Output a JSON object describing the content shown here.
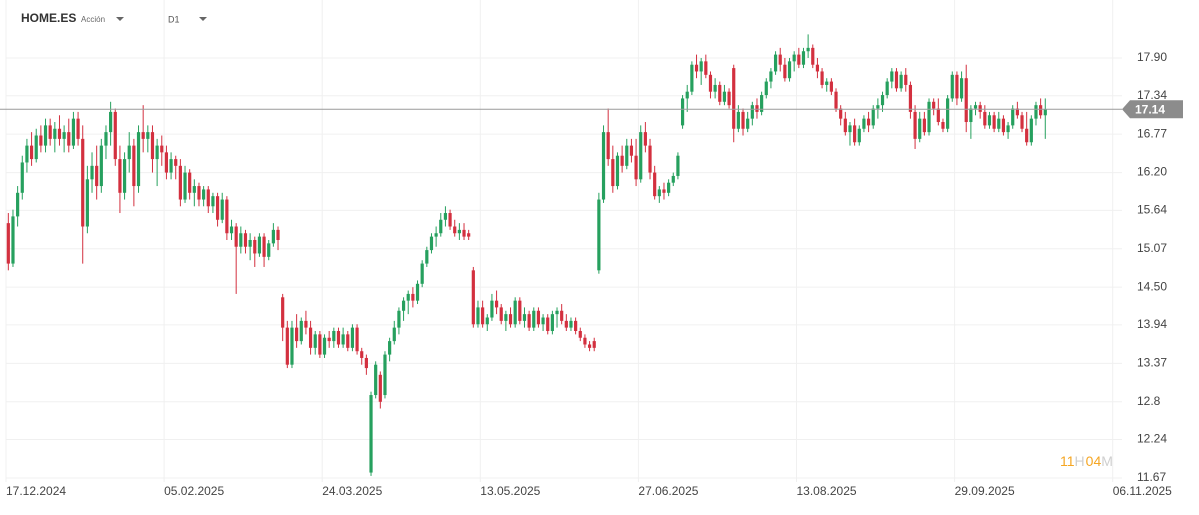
{
  "header": {
    "symbol": "HOME.ES",
    "kind": "Acción",
    "timeframe": "D1"
  },
  "countdown": {
    "hours": "11",
    "h": "H",
    "minutes": "04",
    "m": "M"
  },
  "chart_data": {
    "type": "candlestick",
    "up_color": "#26a05e",
    "down_color": "#d3303f",
    "grid": true,
    "last_price": 17.14,
    "ylim": [
      11.61,
      18.76
    ],
    "yticks": [
      11.67,
      12.24,
      12.8,
      {
        "value": 13.37,
        "label": "13.37"
      },
      13.94,
      {
        "value": 14.5,
        "label": "14.50"
      },
      15.07,
      15.64,
      {
        "value": 16.2,
        "label": "16.20"
      },
      16.77,
      17.34,
      {
        "value": 17.9,
        "label": "17.90"
      }
    ],
    "xlim": [
      0,
      240
    ],
    "xticks": [
      {
        "value": 0,
        "label": "17.12.2024"
      },
      {
        "value": 34,
        "label": "05.02.2025"
      },
      {
        "value": 68,
        "label": "24.03.2025"
      },
      {
        "value": 102,
        "label": "13.05.2025"
      },
      {
        "value": 136,
        "label": "27.06.2025"
      },
      {
        "value": 170,
        "label": "13.08.2025"
      },
      {
        "value": 204,
        "label": "29.09.2025"
      },
      {
        "value": 238,
        "label": "06.11.2025"
      }
    ],
    "candles": [
      [
        15.45,
        15.6,
        14.75,
        14.85
      ],
      [
        14.85,
        15.65,
        14.8,
        15.55
      ],
      [
        15.55,
        16.0,
        15.4,
        15.9
      ],
      [
        15.9,
        16.45,
        15.8,
        16.35
      ],
      [
        16.35,
        16.7,
        16.2,
        16.6
      ],
      [
        16.6,
        16.8,
        16.3,
        16.4
      ],
      [
        16.4,
        16.85,
        16.35,
        16.75
      ],
      [
        16.75,
        16.9,
        16.5,
        16.6
      ],
      [
        16.6,
        17.0,
        16.5,
        16.9
      ],
      [
        16.9,
        17.0,
        16.6,
        16.7
      ],
      [
        16.7,
        16.95,
        16.5,
        16.85
      ],
      [
        16.85,
        17.05,
        16.6,
        16.7
      ],
      [
        16.7,
        16.9,
        16.5,
        16.8
      ],
      [
        16.8,
        17.0,
        16.5,
        16.6
      ],
      [
        16.6,
        17.1,
        16.55,
        17.0
      ],
      [
        17.0,
        17.1,
        16.6,
        16.7
      ],
      [
        16.7,
        16.9,
        14.85,
        15.4
      ],
      [
        15.4,
        16.3,
        15.3,
        16.1
      ],
      [
        16.1,
        16.5,
        15.9,
        16.3
      ],
      [
        16.3,
        16.6,
        15.8,
        16.0
      ],
      [
        16.0,
        16.7,
        15.9,
        16.6
      ],
      [
        16.6,
        16.9,
        16.4,
        16.8
      ],
      [
        16.8,
        17.25,
        16.6,
        17.1
      ],
      [
        17.1,
        17.15,
        16.3,
        16.4
      ],
      [
        16.4,
        16.6,
        15.6,
        15.9
      ],
      [
        15.9,
        16.5,
        15.8,
        16.4
      ],
      [
        16.4,
        16.8,
        16.2,
        16.6
      ],
      [
        16.6,
        16.7,
        15.7,
        16.0
      ],
      [
        16.0,
        16.9,
        15.9,
        16.8
      ],
      [
        16.8,
        17.2,
        16.5,
        16.7
      ],
      [
        16.7,
        16.9,
        16.5,
        16.8
      ],
      [
        16.8,
        16.9,
        16.2,
        16.4
      ],
      [
        16.4,
        16.7,
        16.0,
        16.6
      ],
      [
        16.6,
        16.75,
        16.3,
        16.5
      ],
      [
        16.5,
        16.6,
        16.1,
        16.2
      ],
      [
        16.2,
        16.5,
        16.1,
        16.4
      ],
      [
        16.4,
        16.45,
        16.1,
        16.3
      ],
      [
        16.3,
        16.4,
        15.7,
        15.8
      ],
      [
        15.8,
        16.3,
        15.75,
        16.2
      ],
      [
        16.2,
        16.25,
        15.8,
        15.9
      ],
      [
        15.9,
        16.1,
        15.7,
        16.0
      ],
      [
        16.0,
        16.05,
        15.7,
        15.8
      ],
      [
        15.8,
        16.0,
        15.7,
        15.95
      ],
      [
        15.95,
        16.0,
        15.6,
        15.7
      ],
      [
        15.7,
        15.9,
        15.6,
        15.85
      ],
      [
        15.85,
        15.9,
        15.4,
        15.5
      ],
      [
        15.5,
        15.9,
        15.45,
        15.8
      ],
      [
        15.8,
        15.85,
        15.2,
        15.3
      ],
      [
        15.3,
        15.5,
        15.2,
        15.4
      ],
      [
        15.4,
        15.45,
        14.4,
        15.1
      ],
      [
        15.1,
        15.4,
        15.0,
        15.3
      ],
      [
        15.3,
        15.35,
        15.0,
        15.1
      ],
      [
        15.1,
        15.3,
        14.9,
        15.2
      ],
      [
        15.2,
        15.25,
        14.8,
        15.0
      ],
      [
        15.0,
        15.3,
        14.95,
        15.25
      ],
      [
        15.25,
        15.3,
        14.8,
        14.95
      ],
      [
        14.95,
        15.2,
        14.9,
        15.15
      ],
      [
        15.15,
        15.45,
        15.1,
        15.35
      ],
      [
        15.35,
        15.4,
        15.05,
        15.2
      ],
      [
        14.35,
        14.4,
        13.7,
        13.9
      ],
      [
        13.9,
        14.0,
        13.3,
        13.35
      ],
      [
        13.35,
        14.0,
        13.3,
        13.9
      ],
      [
        13.9,
        14.1,
        13.6,
        13.7
      ],
      [
        13.7,
        14.05,
        13.65,
        14.0
      ],
      [
        14.0,
        14.15,
        13.8,
        13.9
      ],
      [
        13.9,
        14.0,
        13.5,
        13.6
      ],
      [
        13.6,
        13.85,
        13.5,
        13.8
      ],
      [
        13.8,
        13.85,
        13.45,
        13.5
      ],
      [
        13.5,
        13.8,
        13.45,
        13.75
      ],
      [
        13.75,
        13.85,
        13.6,
        13.7
      ],
      [
        13.7,
        13.9,
        13.6,
        13.85
      ],
      [
        13.85,
        13.9,
        13.6,
        13.65
      ],
      [
        13.65,
        13.9,
        13.6,
        13.8
      ],
      [
        13.8,
        13.85,
        13.55,
        13.6
      ],
      [
        13.6,
        13.95,
        13.55,
        13.9
      ],
      [
        13.9,
        13.95,
        13.5,
        13.55
      ],
      [
        13.55,
        13.6,
        13.35,
        13.45
      ],
      [
        13.45,
        13.5,
        13.2,
        13.3
      ],
      [
        11.75,
        12.95,
        11.7,
        12.9
      ],
      [
        12.9,
        13.4,
        12.85,
        13.35
      ],
      [
        13.2,
        13.25,
        12.7,
        12.8
      ],
      [
        12.9,
        13.55,
        12.85,
        13.5
      ],
      [
        13.5,
        13.75,
        13.4,
        13.7
      ],
      [
        13.7,
        14.0,
        13.65,
        13.9
      ],
      [
        13.9,
        14.2,
        13.8,
        14.15
      ],
      [
        14.15,
        14.35,
        14.0,
        14.3
      ],
      [
        14.3,
        14.45,
        14.1,
        14.4
      ],
      [
        14.4,
        14.5,
        14.2,
        14.3
      ],
      [
        14.3,
        14.6,
        14.25,
        14.55
      ],
      [
        14.55,
        14.9,
        14.5,
        14.85
      ],
      [
        14.85,
        15.1,
        14.8,
        15.05
      ],
      [
        15.05,
        15.3,
        15.0,
        15.25
      ],
      [
        15.25,
        15.4,
        15.1,
        15.3
      ],
      [
        15.3,
        15.6,
        15.25,
        15.5
      ],
      [
        15.5,
        15.7,
        15.4,
        15.6
      ],
      [
        15.6,
        15.65,
        15.35,
        15.4
      ],
      [
        15.4,
        15.5,
        15.25,
        15.3
      ],
      [
        15.3,
        15.45,
        15.2,
        15.35
      ],
      [
        15.35,
        15.45,
        15.2,
        15.25
      ],
      [
        15.3,
        15.35,
        15.2,
        15.25
      ],
      [
        14.75,
        14.8,
        13.9,
        13.95
      ],
      [
        13.95,
        14.3,
        13.9,
        14.2
      ],
      [
        14.2,
        14.3,
        13.9,
        13.95
      ],
      [
        13.95,
        14.1,
        13.85,
        14.05
      ],
      [
        14.05,
        14.4,
        14.0,
        14.3
      ],
      [
        14.3,
        14.45,
        14.1,
        14.2
      ],
      [
        14.2,
        14.25,
        13.95,
        14.0
      ],
      [
        14.0,
        14.15,
        13.85,
        14.1
      ],
      [
        14.1,
        14.2,
        13.9,
        13.95
      ],
      [
        13.95,
        14.35,
        13.9,
        14.3
      ],
      [
        14.3,
        14.35,
        13.95,
        14.0
      ],
      [
        14.0,
        14.2,
        13.9,
        14.1
      ],
      [
        14.1,
        14.15,
        13.85,
        13.9
      ],
      [
        13.9,
        14.2,
        13.85,
        14.15
      ],
      [
        14.15,
        14.2,
        13.9,
        13.95
      ],
      [
        13.95,
        14.1,
        13.85,
        14.05
      ],
      [
        14.05,
        14.1,
        13.8,
        13.85
      ],
      [
        13.85,
        14.15,
        13.8,
        14.1
      ],
      [
        14.1,
        14.2,
        13.9,
        14.15
      ],
      [
        14.15,
        14.25,
        13.95,
        14.0
      ],
      [
        14.0,
        14.1,
        13.85,
        13.9
      ],
      [
        13.9,
        14.05,
        13.85,
        14.0
      ],
      [
        14.0,
        14.05,
        13.8,
        13.85
      ],
      [
        13.85,
        13.9,
        13.7,
        13.75
      ],
      [
        13.75,
        13.8,
        13.6,
        13.65
      ],
      [
        13.65,
        13.7,
        13.55,
        13.6
      ],
      [
        13.7,
        13.75,
        13.55,
        13.6
      ],
      [
        14.75,
        15.9,
        14.7,
        15.8
      ],
      [
        15.8,
        16.9,
        15.75,
        16.8
      ],
      [
        16.8,
        17.15,
        16.3,
        16.4
      ],
      [
        16.4,
        16.6,
        15.9,
        16.0
      ],
      [
        16.0,
        16.5,
        15.95,
        16.45
      ],
      [
        16.45,
        16.6,
        16.2,
        16.3
      ],
      [
        16.3,
        16.7,
        16.25,
        16.6
      ],
      [
        16.6,
        16.7,
        16.35,
        16.45
      ],
      [
        16.45,
        16.7,
        16.0,
        16.1
      ],
      [
        16.1,
        16.9,
        16.05,
        16.8
      ],
      [
        16.8,
        16.95,
        16.5,
        16.6
      ],
      [
        16.6,
        16.7,
        16.1,
        16.2
      ],
      [
        16.2,
        16.3,
        15.8,
        15.85
      ],
      [
        15.85,
        16.0,
        15.75,
        15.95
      ],
      [
        15.95,
        16.05,
        15.8,
        15.9
      ],
      [
        15.9,
        16.1,
        15.85,
        16.05
      ],
      [
        16.05,
        16.2,
        16.0,
        16.15
      ],
      [
        16.15,
        16.5,
        16.1,
        16.45
      ],
      [
        16.9,
        17.35,
        16.85,
        17.3
      ],
      [
        17.3,
        17.5,
        17.1,
        17.4
      ],
      [
        17.4,
        17.85,
        17.35,
        17.8
      ],
      [
        17.8,
        17.95,
        17.6,
        17.7
      ],
      [
        17.7,
        17.9,
        17.5,
        17.85
      ],
      [
        17.85,
        17.95,
        17.6,
        17.65
      ],
      [
        17.65,
        17.7,
        17.3,
        17.4
      ],
      [
        17.4,
        17.6,
        17.3,
        17.5
      ],
      [
        17.5,
        17.55,
        17.2,
        17.25
      ],
      [
        17.25,
        17.5,
        17.2,
        17.4
      ],
      [
        17.4,
        17.45,
        17.15,
        17.2
      ],
      [
        17.75,
        17.8,
        16.65,
        16.85
      ],
      [
        16.85,
        17.2,
        16.8,
        17.1
      ],
      [
        17.1,
        17.15,
        16.75,
        16.85
      ],
      [
        16.85,
        17.1,
        16.8,
        17.0
      ],
      [
        17.0,
        17.25,
        16.9,
        17.2
      ],
      [
        17.2,
        17.3,
        17.0,
        17.1
      ],
      [
        17.1,
        17.4,
        17.05,
        17.35
      ],
      [
        17.35,
        17.6,
        17.3,
        17.55
      ],
      [
        17.55,
        17.75,
        17.45,
        17.7
      ],
      [
        17.7,
        18.0,
        17.65,
        17.95
      ],
      [
        17.95,
        18.05,
        17.7,
        17.8
      ],
      [
        17.8,
        17.9,
        17.55,
        17.6
      ],
      [
        17.6,
        17.9,
        17.55,
        17.85
      ],
      [
        17.85,
        18.0,
        17.7,
        17.95
      ],
      [
        17.95,
        18.05,
        17.75,
        17.8
      ],
      [
        17.8,
        18.05,
        17.75,
        18.0
      ],
      [
        18.0,
        18.25,
        17.9,
        18.05
      ],
      [
        18.05,
        18.1,
        17.75,
        17.8
      ],
      [
        17.8,
        17.9,
        17.6,
        17.7
      ],
      [
        17.7,
        17.75,
        17.45,
        17.5
      ],
      [
        17.5,
        17.6,
        17.4,
        17.55
      ],
      [
        17.55,
        17.6,
        17.35,
        17.4
      ],
      [
        17.4,
        17.45,
        17.1,
        17.15
      ],
      [
        17.15,
        17.2,
        16.9,
        17.0
      ],
      [
        17.0,
        17.1,
        16.75,
        16.8
      ],
      [
        16.8,
        16.95,
        16.6,
        16.9
      ],
      [
        16.9,
        17.0,
        16.6,
        16.65
      ],
      [
        16.65,
        16.9,
        16.6,
        16.85
      ],
      [
        16.85,
        17.05,
        16.8,
        17.0
      ],
      [
        17.0,
        17.1,
        16.8,
        16.9
      ],
      [
        16.9,
        17.2,
        16.85,
        17.15
      ],
      [
        17.15,
        17.3,
        17.0,
        17.2
      ],
      [
        17.2,
        17.4,
        17.1,
        17.35
      ],
      [
        17.35,
        17.6,
        17.3,
        17.55
      ],
      [
        17.55,
        17.75,
        17.45,
        17.7
      ],
      [
        17.7,
        17.75,
        17.4,
        17.45
      ],
      [
        17.45,
        17.7,
        17.4,
        17.65
      ],
      [
        17.65,
        17.75,
        17.4,
        17.5
      ],
      [
        17.5,
        17.55,
        17.0,
        17.1
      ],
      [
        17.1,
        17.2,
        16.55,
        16.7
      ],
      [
        16.7,
        17.1,
        16.65,
        17.0
      ],
      [
        17.0,
        17.1,
        16.75,
        16.8
      ],
      [
        16.8,
        17.3,
        16.75,
        17.25
      ],
      [
        17.25,
        17.3,
        17.05,
        17.15
      ],
      [
        17.15,
        17.3,
        16.9,
        16.95
      ],
      [
        16.95,
        17.0,
        16.8,
        16.85
      ],
      [
        16.85,
        17.35,
        16.8,
        17.3
      ],
      [
        17.3,
        17.7,
        17.25,
        17.65
      ],
      [
        17.65,
        17.7,
        17.2,
        17.3
      ],
      [
        17.3,
        17.7,
        17.25,
        17.6
      ],
      [
        17.6,
        17.8,
        16.8,
        16.95
      ],
      [
        16.95,
        17.2,
        16.7,
        17.15
      ],
      [
        17.15,
        17.25,
        17.05,
        17.2
      ],
      [
        17.2,
        17.25,
        17.0,
        17.1
      ],
      [
        17.1,
        17.2,
        16.85,
        16.9
      ],
      [
        16.9,
        17.1,
        16.85,
        17.05
      ],
      [
        17.05,
        17.1,
        16.8,
        16.85
      ],
      [
        16.85,
        17.1,
        16.8,
        17.0
      ],
      [
        17.0,
        17.05,
        16.75,
        16.8
      ],
      [
        16.8,
        16.95,
        16.7,
        16.9
      ],
      [
        16.9,
        17.2,
        16.85,
        17.15
      ],
      [
        17.15,
        17.25,
        17.0,
        17.05
      ],
      [
        17.05,
        17.1,
        16.8,
        16.85
      ],
      [
        16.85,
        17.1,
        16.6,
        16.65
      ],
      [
        16.65,
        17.05,
        16.6,
        17.0
      ],
      [
        17.0,
        17.25,
        16.9,
        17.2
      ],
      [
        17.2,
        17.3,
        17.0,
        17.05
      ],
      [
        17.05,
        17.3,
        16.7,
        17.14
      ]
    ]
  }
}
